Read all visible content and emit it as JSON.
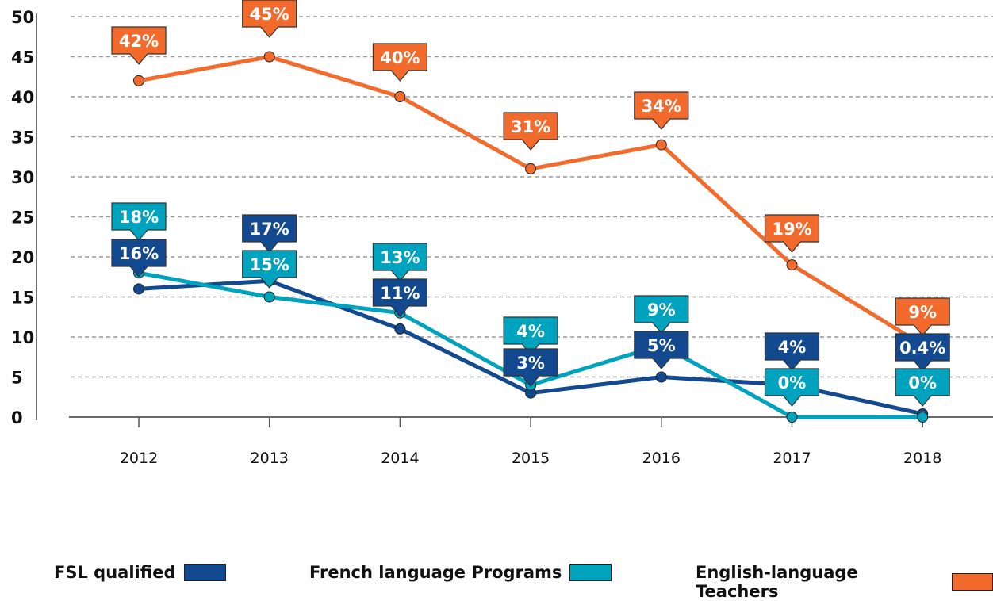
{
  "chart_data": {
    "type": "line",
    "categories": [
      "2012",
      "2013",
      "2014",
      "2015",
      "2016",
      "2017",
      "2018"
    ],
    "ylim": [
      0,
      50
    ],
    "yticks": [
      "0",
      "5",
      "10",
      "15",
      "20",
      "25",
      "30",
      "35",
      "40",
      "45",
      "50"
    ],
    "grid": true,
    "legend_position": "bottom",
    "series": [
      {
        "name": "FSL qualified",
        "color": "#12498F",
        "values": [
          16,
          17,
          11,
          3,
          5,
          4,
          0.4
        ],
        "labels": [
          "16%",
          "17%",
          "11%",
          "3%",
          "5%",
          "4%",
          "0.4%"
        ]
      },
      {
        "name": "French language Programs",
        "color": "#00A3BE",
        "values": [
          18,
          15,
          13,
          4,
          9,
          0,
          0
        ],
        "labels": [
          "18%",
          "15%",
          "13%",
          "4%",
          "9%",
          "0%",
          "0%"
        ]
      },
      {
        "name": "English-language Teachers",
        "color": "#F26B2D",
        "values": [
          42,
          45,
          40,
          31,
          34,
          19,
          9
        ],
        "labels": [
          "42%",
          "45%",
          "40%",
          "31%",
          "34%",
          "19%",
          "9%"
        ]
      }
    ]
  }
}
